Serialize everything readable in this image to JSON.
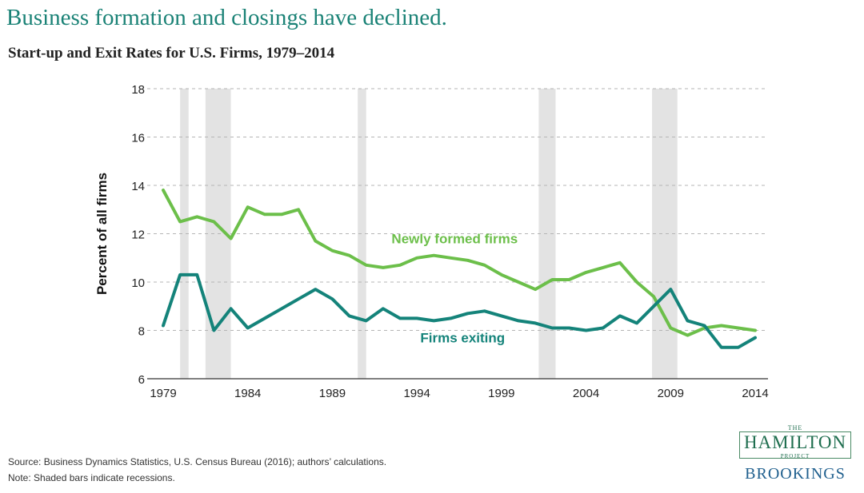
{
  "headline": "Business formation and closings have declined.",
  "chart_data": {
    "type": "line",
    "title": "Start-up and Exit Rates for U.S. Firms, 1979–2014",
    "xlabel": "",
    "ylabel": "Percent of all firms",
    "xlim": [
      1979,
      2014
    ],
    "ylim": [
      6,
      18
    ],
    "y_ticks": [
      "6",
      "8",
      "10",
      "12",
      "14",
      "16",
      "18"
    ],
    "x_ticks": [
      "1979",
      "1984",
      "1989",
      "1994",
      "1999",
      "2004",
      "2009",
      "2014"
    ],
    "grid": "horizontal dashed",
    "recessions": [
      [
        1980,
        1980.5
      ],
      [
        1981.5,
        1983
      ],
      [
        1990.5,
        1991
      ],
      [
        2001.2,
        2002.2
      ],
      [
        2007.9,
        2009.4
      ]
    ],
    "series": [
      {
        "name": "Newly formed firms",
        "color": "#6cbf4a",
        "x": [
          1979,
          1980,
          1981,
          1982,
          1983,
          1984,
          1985,
          1986,
          1987,
          1988,
          1989,
          1990,
          1991,
          1992,
          1993,
          1994,
          1995,
          1996,
          1997,
          1998,
          1999,
          2000,
          2001,
          2002,
          2003,
          2004,
          2005,
          2006,
          2007,
          2008,
          2009,
          2010,
          2011,
          2012,
          2013,
          2014
        ],
        "values": [
          13.8,
          12.5,
          12.7,
          12.5,
          11.8,
          13.1,
          12.8,
          12.8,
          13.0,
          11.7,
          11.3,
          11.1,
          10.7,
          10.6,
          10.7,
          11.0,
          11.1,
          11.0,
          10.9,
          10.7,
          10.3,
          10.0,
          9.7,
          10.1,
          10.1,
          10.4,
          10.6,
          10.8,
          10.0,
          9.4,
          8.1,
          7.8,
          8.1,
          8.2,
          8.1,
          8.0
        ]
      },
      {
        "name": "Firms exiting",
        "color": "#14837a",
        "x": [
          1979,
          1980,
          1981,
          1982,
          1983,
          1984,
          1985,
          1986,
          1987,
          1988,
          1989,
          1990,
          1991,
          1992,
          1993,
          1994,
          1995,
          1996,
          1997,
          1998,
          1999,
          2000,
          2001,
          2002,
          2003,
          2004,
          2005,
          2006,
          2007,
          2008,
          2009,
          2010,
          2011,
          2012,
          2013,
          2014
        ],
        "values": [
          8.2,
          10.3,
          10.3,
          8.0,
          8.9,
          8.1,
          8.5,
          8.9,
          9.3,
          9.7,
          9.3,
          8.6,
          8.4,
          8.9,
          8.5,
          8.5,
          8.4,
          8.5,
          8.7,
          8.8,
          8.6,
          8.4,
          8.3,
          8.1,
          8.1,
          8.0,
          8.1,
          8.6,
          8.3,
          9.0,
          9.7,
          8.4,
          8.2,
          7.3,
          7.3,
          7.7
        ]
      }
    ],
    "annotations": [
      {
        "text": "Newly formed firms",
        "x": 1992.5,
        "y": 11.6,
        "color": "#6cbf4a"
      },
      {
        "text": "Firms exiting",
        "x": 1994.2,
        "y": 7.5,
        "color": "#14837a"
      }
    ]
  },
  "footer": {
    "source": "Source: Business Dynamics Statistics, U.S. Census Bureau (2016); authors’ calculations.",
    "note": "Note: Shaded bars indicate recessions."
  },
  "logo": {
    "the": "THE",
    "hamilton": "HAMILTON",
    "project": "PROJECT",
    "brookings": "BROOKINGS"
  }
}
